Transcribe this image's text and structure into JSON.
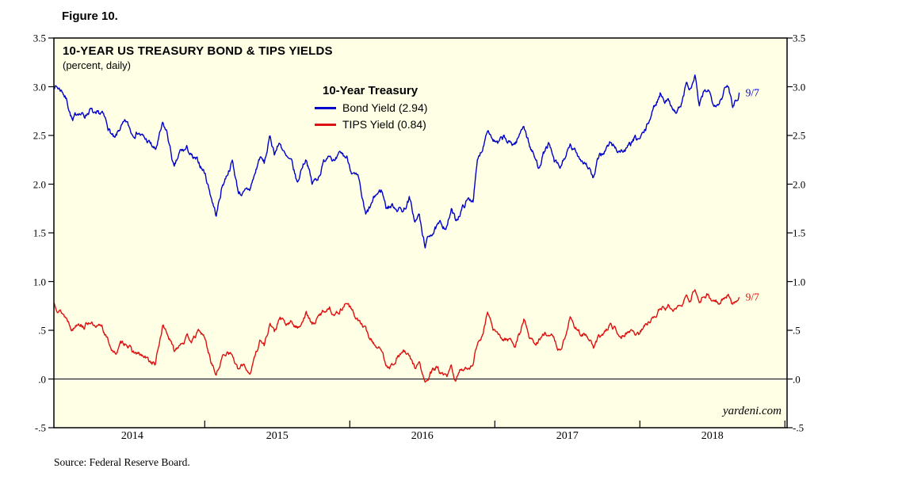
{
  "figure_label": "Figure 10.",
  "colors": {
    "plot_bg": "#ffffe6",
    "axis": "#000000",
    "bond_blue": "#0000cc",
    "tips_red": "#dd1111"
  },
  "chart": {
    "title": "10-YEAR US TREASURY BOND & TIPS YIELDS",
    "subtitle": "(percent, daily)",
    "legend": {
      "heading": "10-Year Treasury",
      "entries": [
        {
          "label": "Bond Yield (2.94)",
          "color": "#0000cc"
        },
        {
          "label": "TIPS Yield (0.84)",
          "color": "#dd1111"
        }
      ]
    },
    "end_labels": [
      {
        "text": "9/7",
        "color": "#0000cc"
      },
      {
        "text": "9/7",
        "color": "#dd1111"
      }
    ],
    "watermark": "yardeni.com",
    "source": "Source: Federal Reserve Board."
  },
  "chart_data": {
    "type": "line",
    "title": "10-YEAR US TREASURY BOND & TIPS YIELDS",
    "subtitle": "(percent, daily)",
    "ylabel": "percent",
    "ylim": [
      -0.5,
      3.5
    ],
    "x_range": [
      2013.96,
      2019.015
    ],
    "grid": "zero-line-only",
    "legend_position": "top-center-inside",
    "yticks": [
      {
        "v": 3.5,
        "label": "3.5"
      },
      {
        "v": 3.0,
        "label": "3.0"
      },
      {
        "v": 2.5,
        "label": "2.5"
      },
      {
        "v": 2.0,
        "label": "2.0"
      },
      {
        "v": 1.5,
        "label": "1.5"
      },
      {
        "v": 1.0,
        "label": "1.0"
      },
      {
        "v": 0.5,
        "label": ".5"
      },
      {
        "v": 0.0,
        "label": ".0"
      },
      {
        "v": -0.5,
        "label": "-.5"
      }
    ],
    "x_boundaries": [
      2015,
      2016,
      2017,
      2018,
      2019
    ],
    "x_year_labels": [
      {
        "label": "2014",
        "t": 2014.5
      },
      {
        "label": "2015",
        "t": 2015.5
      },
      {
        "label": "2016",
        "t": 2016.5
      },
      {
        "label": "2017",
        "t": 2017.5
      },
      {
        "label": "2018",
        "t": 2018.5
      }
    ],
    "series": [
      {
        "name": "10-Year Treasury Bond Yield",
        "last_value": 2.94,
        "last_date": "9/7",
        "color": "#0000cc",
        "points": [
          [
            2013.96,
            3.02
          ],
          [
            2014.02,
            2.96
          ],
          [
            2014.05,
            2.86
          ],
          [
            2014.09,
            2.64
          ],
          [
            2014.13,
            2.75
          ],
          [
            2014.17,
            2.7
          ],
          [
            2014.21,
            2.77
          ],
          [
            2014.25,
            2.68
          ],
          [
            2014.29,
            2.72
          ],
          [
            2014.33,
            2.6
          ],
          [
            2014.38,
            2.44
          ],
          [
            2014.42,
            2.58
          ],
          [
            2014.46,
            2.62
          ],
          [
            2014.5,
            2.52
          ],
          [
            2014.54,
            2.55
          ],
          [
            2014.58,
            2.47
          ],
          [
            2014.62,
            2.42
          ],
          [
            2014.66,
            2.34
          ],
          [
            2014.71,
            2.6
          ],
          [
            2014.74,
            2.52
          ],
          [
            2014.79,
            2.15
          ],
          [
            2014.83,
            2.32
          ],
          [
            2014.88,
            2.36
          ],
          [
            2014.92,
            2.25
          ],
          [
            2014.96,
            2.21
          ],
          [
            2015.0,
            2.12
          ],
          [
            2015.04,
            1.9
          ],
          [
            2015.08,
            1.68
          ],
          [
            2015.12,
            1.98
          ],
          [
            2015.16,
            2.13
          ],
          [
            2015.19,
            2.24
          ],
          [
            2015.23,
            1.93
          ],
          [
            2015.27,
            1.9
          ],
          [
            2015.31,
            1.94
          ],
          [
            2015.35,
            2.12
          ],
          [
            2015.38,
            2.28
          ],
          [
            2015.41,
            2.21
          ],
          [
            2015.45,
            2.48
          ],
          [
            2015.48,
            2.33
          ],
          [
            2015.52,
            2.43
          ],
          [
            2015.56,
            2.27
          ],
          [
            2015.6,
            2.2
          ],
          [
            2015.64,
            2.0
          ],
          [
            2015.67,
            2.18
          ],
          [
            2015.7,
            2.28
          ],
          [
            2015.74,
            2.0
          ],
          [
            2015.78,
            2.07
          ],
          [
            2015.82,
            2.22
          ],
          [
            2015.86,
            2.34
          ],
          [
            2015.9,
            2.22
          ],
          [
            2015.94,
            2.3
          ],
          [
            2015.98,
            2.27
          ],
          [
            2016.02,
            2.12
          ],
          [
            2016.06,
            2.03
          ],
          [
            2016.11,
            1.66
          ],
          [
            2016.14,
            1.75
          ],
          [
            2016.18,
            1.88
          ],
          [
            2016.22,
            1.94
          ],
          [
            2016.25,
            1.77
          ],
          [
            2016.29,
            1.78
          ],
          [
            2016.33,
            1.76
          ],
          [
            2016.37,
            1.73
          ],
          [
            2016.41,
            1.85
          ],
          [
            2016.45,
            1.61
          ],
          [
            2016.48,
            1.68
          ],
          [
            2016.5,
            1.47
          ],
          [
            2016.52,
            1.37
          ],
          [
            2016.56,
            1.5
          ],
          [
            2016.6,
            1.55
          ],
          [
            2016.63,
            1.58
          ],
          [
            2016.67,
            1.57
          ],
          [
            2016.7,
            1.73
          ],
          [
            2016.73,
            1.62
          ],
          [
            2016.77,
            1.74
          ],
          [
            2016.81,
            1.83
          ],
          [
            2016.85,
            1.85
          ],
          [
            2016.88,
            2.22
          ],
          [
            2016.92,
            2.4
          ],
          [
            2016.95,
            2.6
          ],
          [
            2016.98,
            2.49
          ],
          [
            2017.02,
            2.4
          ],
          [
            2017.06,
            2.47
          ],
          [
            2017.1,
            2.41
          ],
          [
            2017.14,
            2.42
          ],
          [
            2017.17,
            2.5
          ],
          [
            2017.2,
            2.62
          ],
          [
            2017.24,
            2.4
          ],
          [
            2017.28,
            2.25
          ],
          [
            2017.3,
            2.18
          ],
          [
            2017.33,
            2.3
          ],
          [
            2017.37,
            2.41
          ],
          [
            2017.41,
            2.22
          ],
          [
            2017.45,
            2.15
          ],
          [
            2017.48,
            2.27
          ],
          [
            2017.52,
            2.37
          ],
          [
            2017.55,
            2.33
          ],
          [
            2017.59,
            2.27
          ],
          [
            2017.63,
            2.22
          ],
          [
            2017.66,
            2.14
          ],
          [
            2017.68,
            2.05
          ],
          [
            2017.72,
            2.28
          ],
          [
            2017.76,
            2.35
          ],
          [
            2017.8,
            2.42
          ],
          [
            2017.84,
            2.36
          ],
          [
            2017.88,
            2.34
          ],
          [
            2017.92,
            2.37
          ],
          [
            2017.96,
            2.45
          ],
          [
            2018.0,
            2.46
          ],
          [
            2018.04,
            2.55
          ],
          [
            2018.08,
            2.72
          ],
          [
            2018.12,
            2.86
          ],
          [
            2018.14,
            2.94
          ],
          [
            2018.18,
            2.87
          ],
          [
            2018.22,
            2.82
          ],
          [
            2018.25,
            2.74
          ],
          [
            2018.29,
            2.83
          ],
          [
            2018.32,
            3.03
          ],
          [
            2018.35,
            2.96
          ],
          [
            2018.38,
            3.11
          ],
          [
            2018.41,
            2.78
          ],
          [
            2018.44,
            2.92
          ],
          [
            2018.47,
            2.98
          ],
          [
            2018.5,
            2.86
          ],
          [
            2018.54,
            2.84
          ],
          [
            2018.58,
            2.96
          ],
          [
            2018.61,
            3.0
          ],
          [
            2018.64,
            2.82
          ],
          [
            2018.66,
            2.88
          ],
          [
            2018.685,
            2.94
          ]
        ]
      },
      {
        "name": "10-Year TIPS Yield",
        "last_value": 0.84,
        "last_date": "9/7",
        "color": "#dd1111",
        "points": [
          [
            2013.96,
            0.78
          ],
          [
            2014.02,
            0.68
          ],
          [
            2014.05,
            0.62
          ],
          [
            2014.09,
            0.52
          ],
          [
            2014.13,
            0.6
          ],
          [
            2014.17,
            0.55
          ],
          [
            2014.21,
            0.6
          ],
          [
            2014.25,
            0.5
          ],
          [
            2014.29,
            0.55
          ],
          [
            2014.33,
            0.4
          ],
          [
            2014.38,
            0.25
          ],
          [
            2014.42,
            0.35
          ],
          [
            2014.46,
            0.38
          ],
          [
            2014.5,
            0.28
          ],
          [
            2014.54,
            0.25
          ],
          [
            2014.58,
            0.22
          ],
          [
            2014.62,
            0.18
          ],
          [
            2014.66,
            0.15
          ],
          [
            2014.71,
            0.55
          ],
          [
            2014.74,
            0.48
          ],
          [
            2014.79,
            0.28
          ],
          [
            2014.83,
            0.38
          ],
          [
            2014.88,
            0.42
          ],
          [
            2014.92,
            0.4
          ],
          [
            2014.96,
            0.49
          ],
          [
            2015.0,
            0.42
          ],
          [
            2015.04,
            0.2
          ],
          [
            2015.08,
            0.04
          ],
          [
            2015.12,
            0.22
          ],
          [
            2015.16,
            0.3
          ],
          [
            2015.19,
            0.25
          ],
          [
            2015.23,
            0.08
          ],
          [
            2015.27,
            0.15
          ],
          [
            2015.31,
            0.06
          ],
          [
            2015.35,
            0.25
          ],
          [
            2015.38,
            0.4
          ],
          [
            2015.41,
            0.35
          ],
          [
            2015.45,
            0.58
          ],
          [
            2015.48,
            0.48
          ],
          [
            2015.52,
            0.62
          ],
          [
            2015.56,
            0.55
          ],
          [
            2015.6,
            0.58
          ],
          [
            2015.64,
            0.52
          ],
          [
            2015.67,
            0.6
          ],
          [
            2015.7,
            0.68
          ],
          [
            2015.74,
            0.55
          ],
          [
            2015.78,
            0.62
          ],
          [
            2015.82,
            0.7
          ],
          [
            2015.86,
            0.74
          ],
          [
            2015.9,
            0.66
          ],
          [
            2015.94,
            0.72
          ],
          [
            2015.98,
            0.8
          ],
          [
            2016.02,
            0.68
          ],
          [
            2016.06,
            0.6
          ],
          [
            2016.11,
            0.5
          ],
          [
            2016.14,
            0.42
          ],
          [
            2016.18,
            0.35
          ],
          [
            2016.22,
            0.28
          ],
          [
            2016.25,
            0.16
          ],
          [
            2016.29,
            0.14
          ],
          [
            2016.33,
            0.23
          ],
          [
            2016.37,
            0.28
          ],
          [
            2016.41,
            0.22
          ],
          [
            2016.45,
            0.12
          ],
          [
            2016.48,
            0.16
          ],
          [
            2016.5,
            0.05
          ],
          [
            2016.52,
            -0.05
          ],
          [
            2016.56,
            0.05
          ],
          [
            2016.6,
            0.12
          ],
          [
            2016.63,
            0.05
          ],
          [
            2016.67,
            0.0
          ],
          [
            2016.7,
            0.12
          ],
          [
            2016.73,
            -0.02
          ],
          [
            2016.77,
            0.1
          ],
          [
            2016.81,
            0.12
          ],
          [
            2016.85,
            0.16
          ],
          [
            2016.88,
            0.38
          ],
          [
            2016.92,
            0.45
          ],
          [
            2016.95,
            0.7
          ],
          [
            2016.98,
            0.52
          ],
          [
            2017.02,
            0.45
          ],
          [
            2017.06,
            0.4
          ],
          [
            2017.1,
            0.42
          ],
          [
            2017.14,
            0.35
          ],
          [
            2017.17,
            0.45
          ],
          [
            2017.2,
            0.62
          ],
          [
            2017.24,
            0.42
          ],
          [
            2017.28,
            0.36
          ],
          [
            2017.3,
            0.4
          ],
          [
            2017.33,
            0.44
          ],
          [
            2017.37,
            0.48
          ],
          [
            2017.41,
            0.4
          ],
          [
            2017.45,
            0.28
          ],
          [
            2017.48,
            0.42
          ],
          [
            2017.52,
            0.62
          ],
          [
            2017.55,
            0.55
          ],
          [
            2017.59,
            0.48
          ],
          [
            2017.63,
            0.44
          ],
          [
            2017.66,
            0.38
          ],
          [
            2017.68,
            0.31
          ],
          [
            2017.72,
            0.42
          ],
          [
            2017.76,
            0.48
          ],
          [
            2017.8,
            0.55
          ],
          [
            2017.84,
            0.5
          ],
          [
            2017.88,
            0.46
          ],
          [
            2017.92,
            0.5
          ],
          [
            2017.96,
            0.48
          ],
          [
            2018.0,
            0.46
          ],
          [
            2018.04,
            0.55
          ],
          [
            2018.08,
            0.61
          ],
          [
            2018.12,
            0.7
          ],
          [
            2018.14,
            0.74
          ],
          [
            2018.18,
            0.72
          ],
          [
            2018.22,
            0.76
          ],
          [
            2018.25,
            0.69
          ],
          [
            2018.29,
            0.76
          ],
          [
            2018.32,
            0.85
          ],
          [
            2018.35,
            0.8
          ],
          [
            2018.38,
            0.95
          ],
          [
            2018.41,
            0.76
          ],
          [
            2018.44,
            0.83
          ],
          [
            2018.47,
            0.88
          ],
          [
            2018.5,
            0.8
          ],
          [
            2018.54,
            0.78
          ],
          [
            2018.58,
            0.85
          ],
          [
            2018.61,
            0.88
          ],
          [
            2018.64,
            0.76
          ],
          [
            2018.66,
            0.8
          ],
          [
            2018.685,
            0.84
          ]
        ]
      }
    ]
  }
}
